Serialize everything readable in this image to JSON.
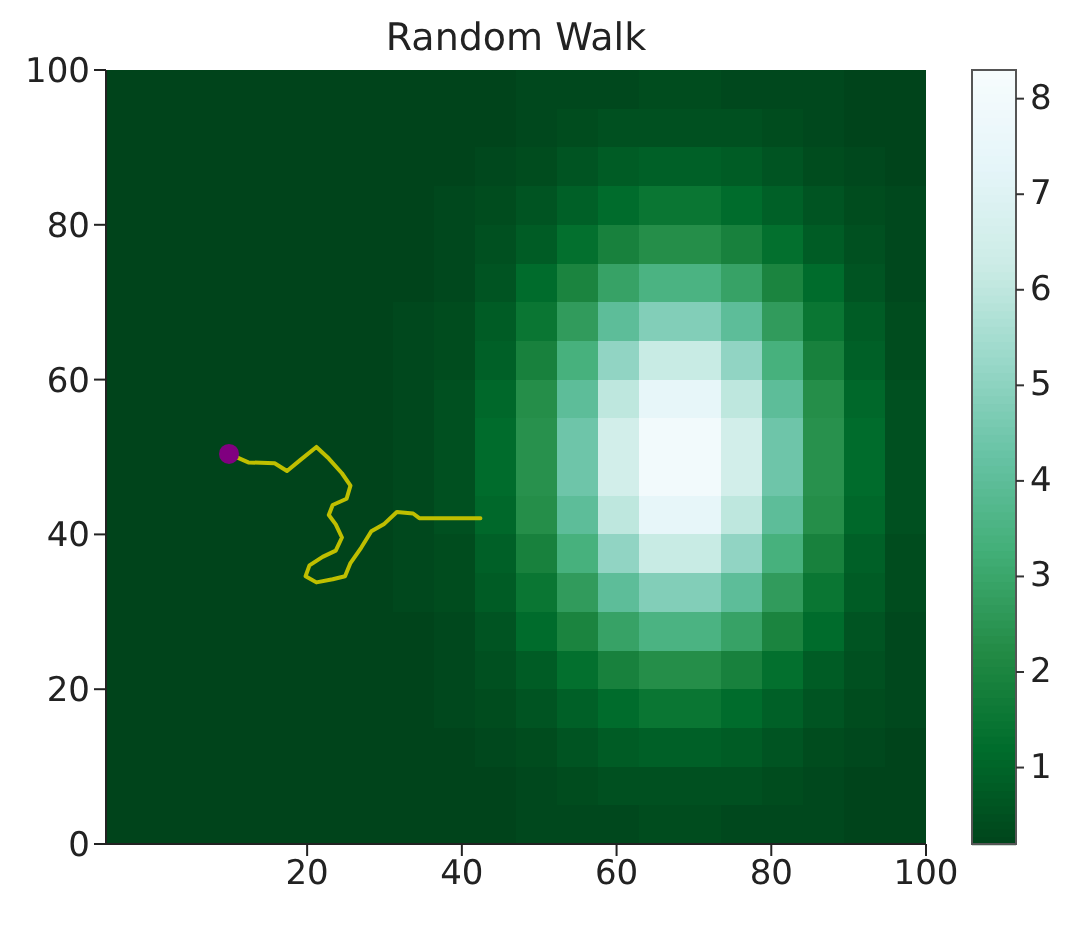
{
  "chart_data": {
    "type": "heatmap",
    "title": "Random Walk",
    "xlim": [
      -6,
      100
    ],
    "xticks": [
      20,
      40,
      60,
      80,
      100
    ],
    "ylim": [
      0,
      100
    ],
    "yticks": [
      0,
      20,
      40,
      60,
      80,
      100
    ],
    "clim": [
      0.2,
      8.3
    ],
    "cticks": [
      1,
      2,
      3,
      4,
      5,
      6,
      7,
      8
    ],
    "cells": [
      [
        0.2,
        0.2,
        0.2,
        0.2,
        0.2,
        0.2,
        0.2,
        0.2,
        0.2,
        0.2,
        0.3,
        0.3,
        0.3,
        0.4,
        0.4,
        0.3,
        0.3,
        0.3,
        0.2,
        0.2
      ],
      [
        0.2,
        0.2,
        0.2,
        0.2,
        0.2,
        0.2,
        0.2,
        0.2,
        0.2,
        0.2,
        0.3,
        0.4,
        0.5,
        0.5,
        0.5,
        0.5,
        0.4,
        0.3,
        0.2,
        0.2
      ],
      [
        0.2,
        0.2,
        0.2,
        0.2,
        0.2,
        0.2,
        0.2,
        0.2,
        0.2,
        0.3,
        0.4,
        0.6,
        0.8,
        0.9,
        0.9,
        0.8,
        0.6,
        0.4,
        0.3,
        0.2
      ],
      [
        0.2,
        0.2,
        0.2,
        0.2,
        0.2,
        0.2,
        0.2,
        0.2,
        0.3,
        0.4,
        0.6,
        0.9,
        1.2,
        1.5,
        1.5,
        1.2,
        0.9,
        0.6,
        0.4,
        0.3
      ],
      [
        0.2,
        0.2,
        0.2,
        0.2,
        0.2,
        0.2,
        0.2,
        0.2,
        0.3,
        0.5,
        0.8,
        1.3,
        1.9,
        2.3,
        2.3,
        1.9,
        1.3,
        0.8,
        0.5,
        0.3
      ],
      [
        0.2,
        0.2,
        0.2,
        0.2,
        0.2,
        0.2,
        0.2,
        0.2,
        0.3,
        0.6,
        1.2,
        2.0,
        2.9,
        3.5,
        3.5,
        2.9,
        2.0,
        1.2,
        0.6,
        0.3
      ],
      [
        0.2,
        0.2,
        0.2,
        0.2,
        0.2,
        0.2,
        0.2,
        0.3,
        0.4,
        0.8,
        1.5,
        2.7,
        4.0,
        4.8,
        4.8,
        4.0,
        2.7,
        1.5,
        0.8,
        0.4
      ],
      [
        0.2,
        0.2,
        0.2,
        0.2,
        0.2,
        0.2,
        0.2,
        0.3,
        0.4,
        0.9,
        1.9,
        3.4,
        5.1,
        6.2,
        6.2,
        5.1,
        3.4,
        1.9,
        0.9,
        0.4
      ],
      [
        0.2,
        0.2,
        0.2,
        0.2,
        0.2,
        0.2,
        0.2,
        0.3,
        0.5,
        1.1,
        2.3,
        4.0,
        6.0,
        7.4,
        7.4,
        6.0,
        4.0,
        2.3,
        1.1,
        0.5
      ],
      [
        0.2,
        0.2,
        0.2,
        0.2,
        0.2,
        0.2,
        0.2,
        0.3,
        0.5,
        1.2,
        2.4,
        4.4,
        6.5,
        8.0,
        8.0,
        6.5,
        4.4,
        2.4,
        1.2,
        0.5
      ],
      [
        0.2,
        0.2,
        0.2,
        0.2,
        0.2,
        0.2,
        0.2,
        0.3,
        0.5,
        1.2,
        2.4,
        4.4,
        6.5,
        8.0,
        8.0,
        6.5,
        4.4,
        2.4,
        1.2,
        0.5
      ],
      [
        0.2,
        0.2,
        0.2,
        0.2,
        0.2,
        0.2,
        0.2,
        0.3,
        0.5,
        1.1,
        2.3,
        4.0,
        6.0,
        7.4,
        7.4,
        6.0,
        4.0,
        2.3,
        1.1,
        0.5
      ],
      [
        0.2,
        0.2,
        0.2,
        0.2,
        0.2,
        0.2,
        0.2,
        0.3,
        0.4,
        0.9,
        1.9,
        3.4,
        5.1,
        6.2,
        6.2,
        5.1,
        3.4,
        1.9,
        0.9,
        0.4
      ],
      [
        0.2,
        0.2,
        0.2,
        0.2,
        0.2,
        0.2,
        0.2,
        0.3,
        0.4,
        0.8,
        1.5,
        2.7,
        4.0,
        4.8,
        4.8,
        4.0,
        2.7,
        1.5,
        0.8,
        0.4
      ],
      [
        0.2,
        0.2,
        0.2,
        0.2,
        0.2,
        0.2,
        0.2,
        0.2,
        0.3,
        0.6,
        1.2,
        2.0,
        2.9,
        3.5,
        3.5,
        2.9,
        2.0,
        1.2,
        0.6,
        0.3
      ],
      [
        0.2,
        0.2,
        0.2,
        0.2,
        0.2,
        0.2,
        0.2,
        0.2,
        0.3,
        0.5,
        0.8,
        1.3,
        1.9,
        2.3,
        2.3,
        1.9,
        1.3,
        0.8,
        0.5,
        0.3
      ],
      [
        0.2,
        0.2,
        0.2,
        0.2,
        0.2,
        0.2,
        0.2,
        0.2,
        0.3,
        0.4,
        0.6,
        0.9,
        1.2,
        1.5,
        1.5,
        1.2,
        0.9,
        0.6,
        0.4,
        0.3
      ],
      [
        0.2,
        0.2,
        0.2,
        0.2,
        0.2,
        0.2,
        0.2,
        0.2,
        0.2,
        0.3,
        0.4,
        0.6,
        0.8,
        0.9,
        0.9,
        0.8,
        0.6,
        0.4,
        0.3,
        0.2
      ],
      [
        0.2,
        0.2,
        0.2,
        0.2,
        0.2,
        0.2,
        0.2,
        0.2,
        0.2,
        0.2,
        0.3,
        0.4,
        0.5,
        0.5,
        0.5,
        0.5,
        0.4,
        0.3,
        0.2,
        0.2
      ],
      [
        0.2,
        0.2,
        0.2,
        0.2,
        0.2,
        0.2,
        0.2,
        0.2,
        0.2,
        0.2,
        0.3,
        0.3,
        0.3,
        0.4,
        0.4,
        0.3,
        0.3,
        0.3,
        0.2,
        0.2
      ]
    ],
    "series": [
      {
        "type": "line",
        "color": "#bfbf00",
        "x": [
          9.9,
          12.4,
          15.8,
          17.4,
          19.1,
          21.2,
          22.8,
          24.5,
          25.6,
          25.1,
          23.3,
          22.8,
          23.7,
          24.5,
          23.7,
          22.0,
          20.3,
          19.8,
          21.2,
          23.3,
          24.9,
          25.6,
          27.0,
          28.3,
          29.9,
          31.6,
          33.7,
          34.5,
          42.4
        ],
        "values": [
          50.4,
          49.3,
          49.2,
          48.2,
          49.6,
          51.3,
          49.8,
          47.9,
          46.3,
          44.6,
          43.8,
          42.5,
          41.3,
          39.6,
          37.9,
          37.1,
          36.0,
          34.6,
          33.8,
          34.2,
          34.6,
          36.3,
          38.3,
          40.4,
          41.3,
          42.9,
          42.7,
          42.1,
          42.1
        ]
      },
      {
        "type": "scatter",
        "color": "#800080",
        "marker": "circle",
        "x": [
          9.9
        ],
        "values": [
          50.4
        ]
      }
    ]
  }
}
